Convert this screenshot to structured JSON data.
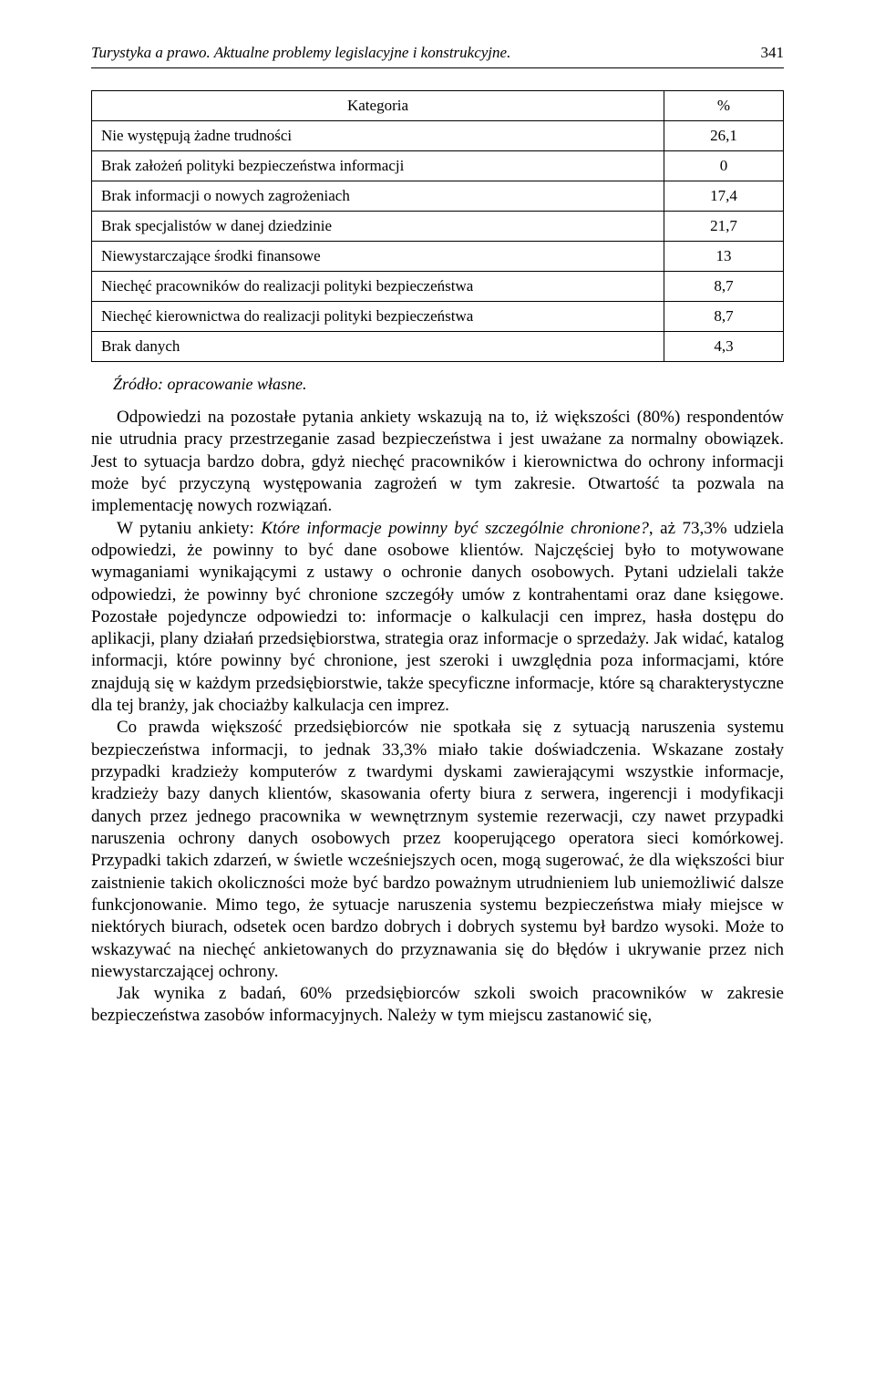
{
  "header": {
    "running_title": "Turystyka a prawo. Aktualne problemy legislacyjne i konstrukcyjne.",
    "page_number": "341"
  },
  "table": {
    "columns": [
      "Kategoria",
      "%"
    ],
    "rows": [
      [
        "Nie występują żadne trudności",
        "26,1"
      ],
      [
        "Brak założeń polityki bezpieczeństwa informacji",
        "0"
      ],
      [
        "Brak informacji o nowych zagrożeniach",
        "17,4"
      ],
      [
        "Brak specjalistów w danej dziedzinie",
        "21,7"
      ],
      [
        "Niewystarczające środki finansowe",
        "13"
      ],
      [
        "Niechęć pracowników do realizacji polityki bezpieczeństwa",
        "8,7"
      ],
      [
        "Niechęć kierownictwa do realizacji polityki bezpieczeństwa",
        "8,7"
      ],
      [
        "Brak danych",
        "4,3"
      ]
    ]
  },
  "source_label": "Źródło: opracowanie własne.",
  "paragraphs": {
    "p1": "Odpowiedzi na pozostałe pytania ankiety wskazują na to, iż większości (80%) respondentów nie utrudnia pracy przestrzeganie zasad bezpieczeństwa i jest uważane za normalny obowiązek. Jest to sytuacja bardzo dobra, gdyż niechęć pracowników i kierownictwa do ochrony informacji może być przyczyną występowania zagrożeń w tym zakresie. Otwartość ta pozwala na implementację nowych rozwiązań.",
    "p2_prefix": "W pytaniu ankiety: ",
    "p2_italic": "Które informacje powinny być szczególnie chronione?",
    "p2_suffix": ", aż 73,3% udziela odpowiedzi, że powinny to być dane osobowe klientów. Najczęściej było to motywowane wymaganiami wynikającymi z ustawy o ochronie danych osobowych. Pytani udzielali także odpowiedzi, że powinny być chronione szczegóły umów z kontrahentami oraz dane księgowe. Pozostałe pojedyncze odpowiedzi to: informacje o kalkulacji cen imprez, hasła dostępu do aplikacji, plany działań przedsiębiorstwa, strategia oraz informacje o sprzedaży. Jak widać, katalog informacji, które powinny być chronione, jest szeroki i uwzględnia poza informacjami, które znajdują się w każdym przedsiębiorstwie, także specyficzne informacje, które są charakterystyczne dla tej branży, jak chociażby kalkulacja cen imprez.",
    "p3": "Co prawda większość przedsiębiorców nie spotkała się z sytuacją naruszenia systemu bezpieczeństwa informacji, to jednak 33,3% miało takie doświadczenia. Wskazane zostały przypadki kradzieży komputerów z twardymi dyskami zawierającymi wszystkie informacje, kradzieży bazy danych klientów, skasowania oferty biura z serwera, ingerencji i modyfikacji danych przez jednego pracownika w wewnętrznym systemie rezerwacji, czy nawet przypadki naruszenia ochrony danych osobowych przez kooperującego operatora sieci komórkowej. Przypadki takich zdarzeń, w świetle wcześniejszych ocen, mogą sugerować, że dla większości biur zaistnienie takich okoliczności może być bardzo poważnym utrudnieniem lub uniemożliwić dalsze funkcjonowanie. Mimo tego, że sytuacje naruszenia systemu bezpieczeństwa miały miejsce w niektórych biurach, odsetek ocen bardzo dobrych i dobrych systemu był bardzo wysoki. Może to wskazywać na niechęć ankietowanych do przyznawania się do błędów i ukrywanie przez nich niewystarczającej ochrony.",
    "p4": "Jak wynika z badań, 60% przedsiębiorców szkoli swoich pracowników w zakresie bezpieczeństwa zasobów informacyjnych. Należy w tym miejscu zastanowić się,"
  }
}
